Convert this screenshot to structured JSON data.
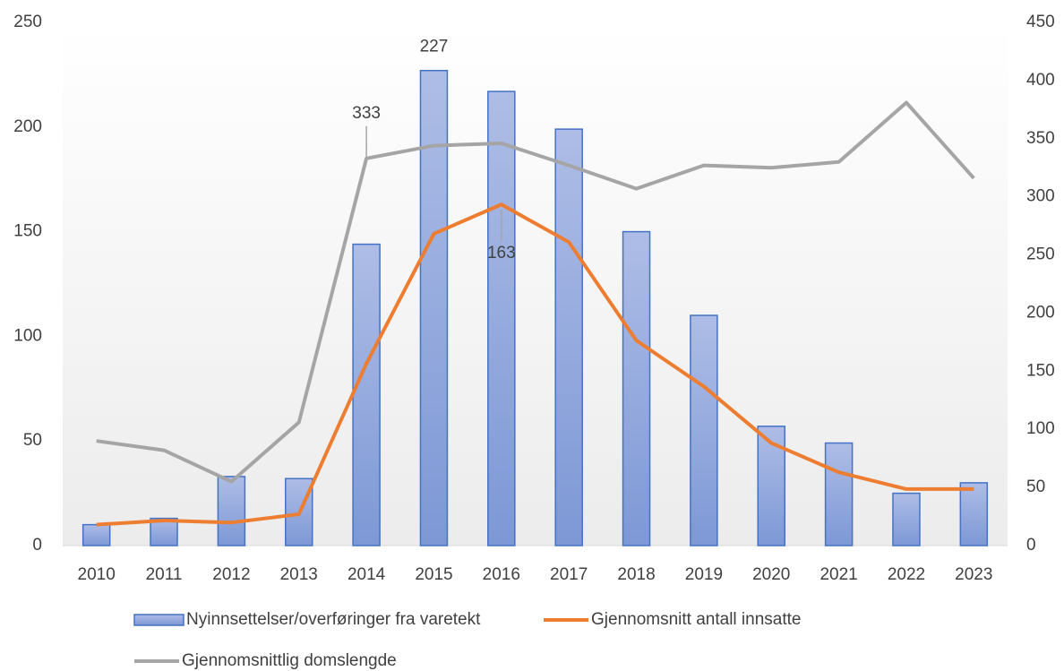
{
  "chart_data": {
    "type": "bar",
    "categories": [
      "2010",
      "2011",
      "2012",
      "2013",
      "2014",
      "2015",
      "2016",
      "2017",
      "2018",
      "2019",
      "2020",
      "2021",
      "2022",
      "2023"
    ],
    "series": [
      {
        "name": "Nyinnsettelser/overføringer fra varetekt",
        "type": "bar",
        "color": "#4472c4",
        "values": [
          10,
          13,
          33,
          32,
          144,
          227,
          217,
          199,
          150,
          110,
          57,
          49,
          25,
          30
        ],
        "value_labels": [
          null,
          null,
          null,
          null,
          null,
          "227",
          null,
          null,
          null,
          null,
          null,
          null,
          null,
          null
        ]
      },
      {
        "name": "Gjennomsnitt antall innsatte",
        "type": "line",
        "color": "#ed7d31",
        "values": [
          10,
          12,
          11,
          15,
          87,
          149,
          163,
          145,
          98,
          76,
          49,
          35,
          27,
          27
        ],
        "value_labels": [
          null,
          null,
          null,
          null,
          null,
          null,
          "163",
          null,
          null,
          null,
          null,
          null,
          null,
          null
        ]
      },
      {
        "name": "Gjennomsnittlig domslengde",
        "type": "line",
        "color": "#a5a5a5",
        "axis": "y2",
        "values": [
          90,
          82,
          55,
          106,
          333,
          344,
          346,
          327,
          307,
          327,
          325,
          330,
          381,
          316
        ],
        "value_labels": [
          null,
          null,
          null,
          null,
          "333",
          null,
          null,
          null,
          null,
          null,
          null,
          null,
          null,
          null
        ]
      }
    ],
    "ylim": [
      0,
      250
    ],
    "yticks": [
      0,
      50,
      100,
      150,
      200,
      250
    ],
    "y2lim": [
      0,
      450
    ],
    "y2ticks": [
      0,
      50,
      100,
      150,
      200,
      250,
      300,
      350,
      400,
      450
    ],
    "legend": "bottom"
  }
}
